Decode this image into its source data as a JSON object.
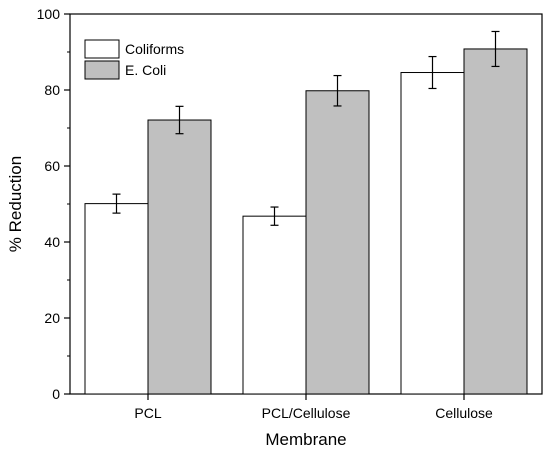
{
  "chart_data": {
    "type": "bar",
    "title": "",
    "xlabel": "Membrane",
    "ylabel": "% Reduction",
    "categories": [
      "PCL",
      "PCL/Cellulose",
      "Cellulose"
    ],
    "ylim": [
      0,
      100
    ],
    "yticks": [
      0,
      20,
      40,
      60,
      80,
      100
    ],
    "grid": false,
    "legend_position": "top-left",
    "series": [
      {
        "name": "Coliforms",
        "values": [
          50.1,
          46.8,
          84.6
        ],
        "errors": [
          2.5,
          2.4,
          4.2
        ],
        "color": "#ffffff"
      },
      {
        "name": "E. Coli",
        "values": [
          72.1,
          79.8,
          90.8
        ],
        "errors": [
          3.6,
          4.0,
          4.6
        ],
        "color": "#c0c0c0"
      }
    ]
  }
}
